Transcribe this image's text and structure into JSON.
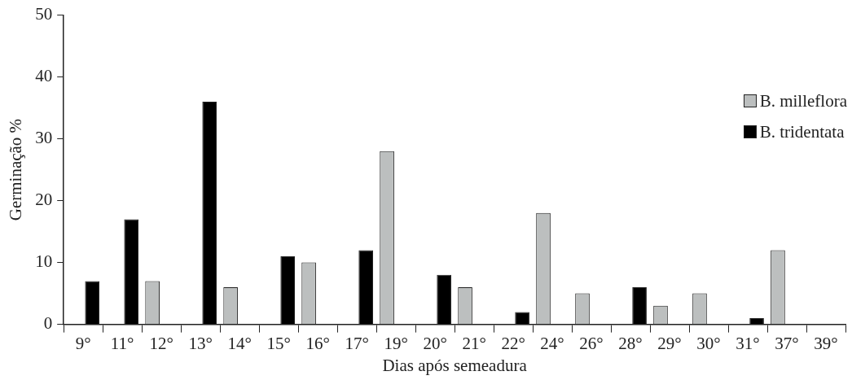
{
  "chart_data": {
    "type": "bar",
    "xlabel": "Dias após semeadura",
    "ylabel": "Germinação %",
    "categories": [
      "9°",
      "11°",
      "12°",
      "13°",
      "14°",
      "15°",
      "16°",
      "17°",
      "19°",
      "20°",
      "21°",
      "22°",
      "24°",
      "26°",
      "28°",
      "29°",
      "30°",
      "31°",
      "37°",
      "39°"
    ],
    "series": [
      {
        "name": "B. milleflora",
        "color": "#bcbfbf",
        "values": [
          0,
          0,
          7,
          0,
          6,
          0,
          10,
          0,
          28,
          0,
          6,
          0,
          18,
          5,
          0,
          3,
          5,
          0,
          12,
          0
        ]
      },
      {
        "name": "B. tridentata",
        "color": "#000000",
        "values": [
          7,
          17,
          0,
          36,
          0,
          11,
          0,
          12,
          0,
          8,
          0,
          2,
          0,
          0,
          6,
          0,
          0,
          1,
          0,
          0
        ]
      }
    ],
    "ylim": [
      0,
      50
    ],
    "yticks": [
      0,
      10,
      20,
      30,
      40,
      50
    ],
    "grid": false,
    "legend": "right"
  }
}
